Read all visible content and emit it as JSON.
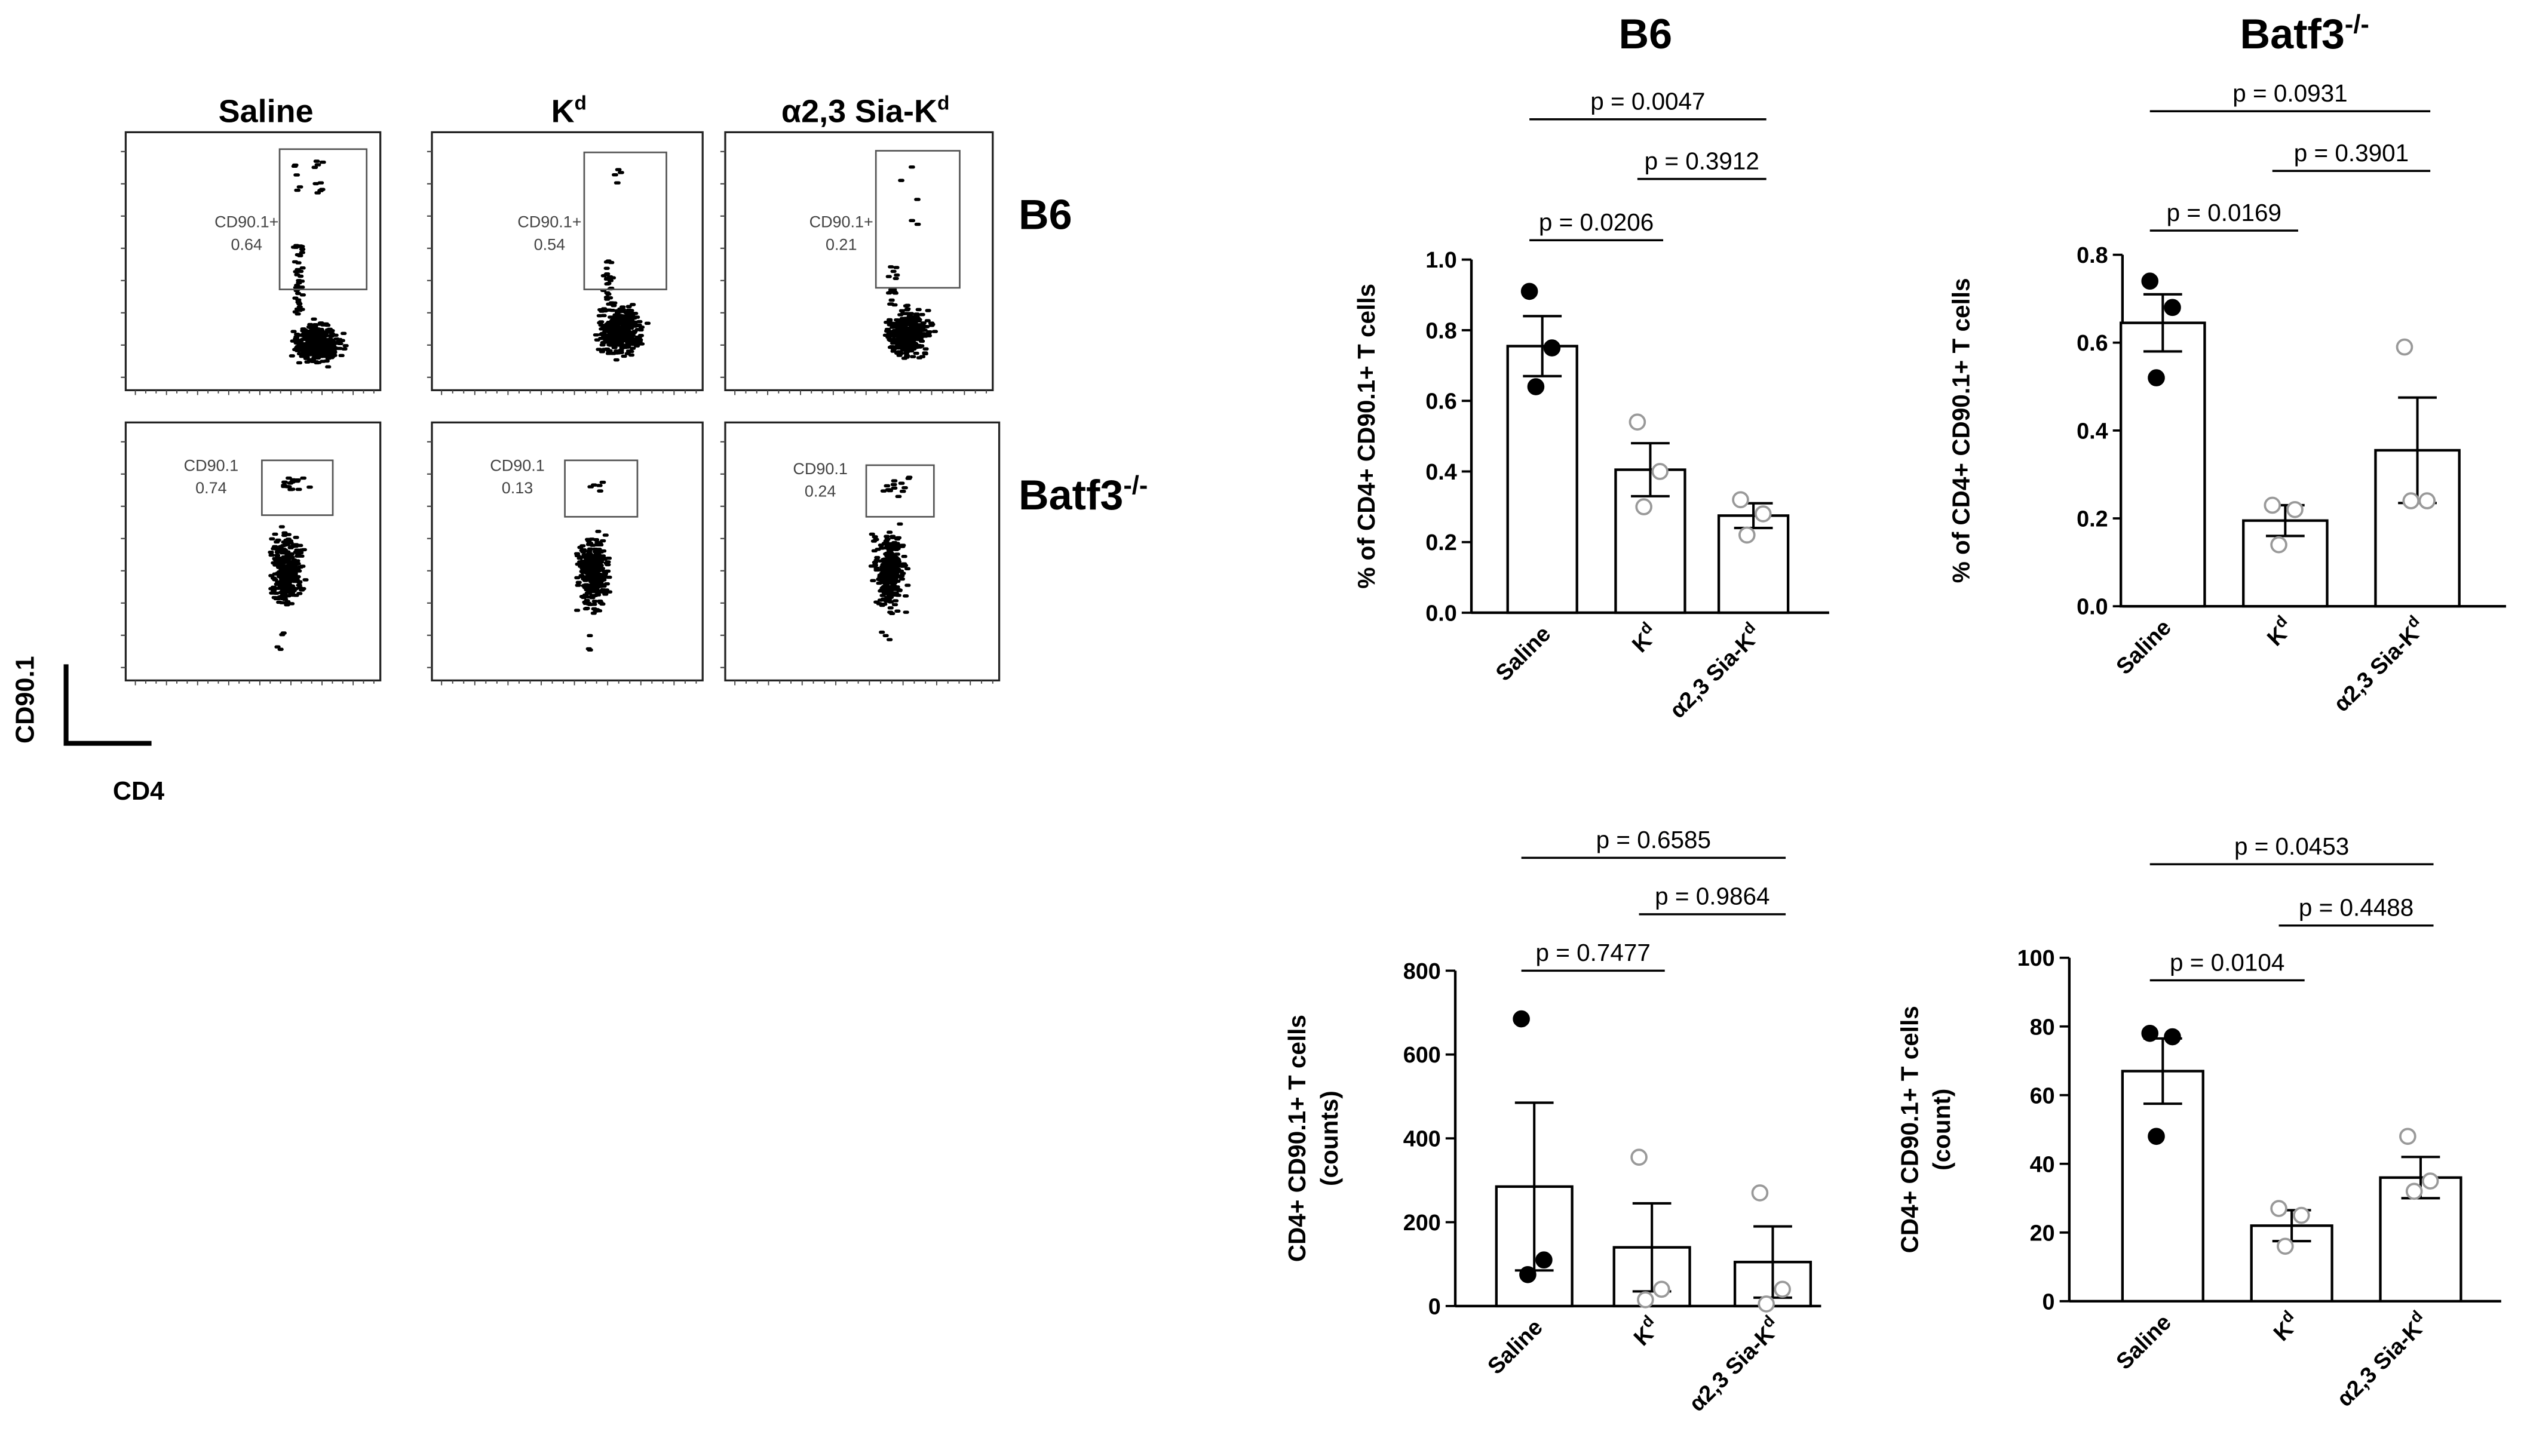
{
  "flow": {
    "columns": [
      {
        "name": "Saline",
        "sup": ""
      },
      {
        "name": "K",
        "sup": "d"
      },
      {
        "name": "α2,3 Sia-K",
        "sup": "d"
      }
    ],
    "rows": [
      {
        "name": "B6",
        "sup": "",
        "gate_name": "CD90.1+",
        "gates": [
          "0.64",
          "0.54",
          "0.21"
        ]
      },
      {
        "name": "Batf3",
        "sup": "-/-",
        "gate_name": "CD90.1",
        "gates": [
          "0.74",
          "0.13",
          "0.24"
        ]
      }
    ],
    "y_axis": "CD90.1",
    "x_axis": "CD4"
  },
  "groups": {
    "b6": {
      "title": "B6",
      "sup": ""
    },
    "batf3": {
      "title": "Batf3",
      "sup": "-/-"
    }
  },
  "chart_data": [
    {
      "type": "bar",
      "group": "B6",
      "ylabel_lines": [
        "% of CD4+ CD90.1+ T cells"
      ],
      "categories": [
        "Saline",
        "K^d",
        "α2,3 Sia-K^d"
      ],
      "values": [
        0.755,
        0.405,
        0.275
      ],
      "sem": [
        0.085,
        0.075,
        0.035
      ],
      "points": [
        [
          0.91,
          0.75,
          0.64
        ],
        [
          0.54,
          0.4,
          0.3
        ],
        [
          0.32,
          0.28,
          0.22
        ]
      ],
      "ylim": [
        0,
        1.0
      ],
      "yticks": [
        "0.0",
        "0.2",
        "0.4",
        "0.6",
        "0.8",
        "1.0"
      ],
      "comparisons": [
        {
          "label": "p = 0.0206",
          "from": 0,
          "to": 1
        },
        {
          "label": "p = 0.3912",
          "from": 1,
          "to": 2
        },
        {
          "label": "p = 0.0047",
          "from": 0,
          "to": 2
        }
      ]
    },
    {
      "type": "bar",
      "group": "Batf3-/-",
      "ylabel_lines": [
        "% of CD4+ CD90.1+ T cells"
      ],
      "categories": [
        "Saline",
        "K^d",
        "α2,3 Sia-K^d"
      ],
      "values": [
        0.645,
        0.195,
        0.355
      ],
      "sem": [
        0.065,
        0.035,
        0.12
      ],
      "points": [
        [
          0.74,
          0.68,
          0.52
        ],
        [
          0.23,
          0.22,
          0.14
        ],
        [
          0.59,
          0.24,
          0.24
        ]
      ],
      "ylim": [
        0,
        0.8
      ],
      "yticks": [
        "0.0",
        "0.2",
        "0.4",
        "0.6",
        "0.8"
      ],
      "comparisons": [
        {
          "label": "p = 0.0169",
          "from": 0,
          "to": 1
        },
        {
          "label": "p = 0.3901",
          "from": 1,
          "to": 2
        },
        {
          "label": "p = 0.0931",
          "from": 0,
          "to": 2
        }
      ]
    },
    {
      "type": "bar",
      "group": "B6",
      "ylabel_lines": [
        "CD4+ CD90.1+ T cells",
        "(counts)"
      ],
      "categories": [
        "Saline",
        "K^d",
        "α2,3 Sia-K^d"
      ],
      "values": [
        285,
        140,
        105
      ],
      "sem": [
        200,
        105,
        85
      ],
      "points": [
        [
          685,
          110,
          75
        ],
        [
          355,
          40,
          15
        ],
        [
          270,
          40,
          5
        ]
      ],
      "ylim": [
        0,
        800
      ],
      "yticks": [
        "0",
        "200",
        "400",
        "600",
        "800"
      ],
      "comparisons": [
        {
          "label": "p = 0.7477",
          "from": 0,
          "to": 1
        },
        {
          "label": "p = 0.9864",
          "from": 1,
          "to": 2
        },
        {
          "label": "p = 0.6585",
          "from": 0,
          "to": 2
        }
      ]
    },
    {
      "type": "bar",
      "group": "Batf3-/-",
      "ylabel_lines": [
        "CD4+ CD90.1+ T cells",
        "(count)"
      ],
      "categories": [
        "Saline",
        "K^d",
        "α2,3 Sia-K^d"
      ],
      "values": [
        67,
        22,
        36
      ],
      "sem": [
        9.5,
        4.5,
        6
      ],
      "points": [
        [
          78,
          77,
          48
        ],
        [
          27,
          25,
          16
        ],
        [
          48,
          35,
          32
        ]
      ],
      "ylim": [
        0,
        100
      ],
      "yticks": [
        "0",
        "20",
        "40",
        "60",
        "80",
        "100"
      ],
      "comparisons": [
        {
          "label": "p = 0.0104",
          "from": 0,
          "to": 1
        },
        {
          "label": "p = 0.4488",
          "from": 1,
          "to": 2
        },
        {
          "label": "p = 0.0453",
          "from": 0,
          "to": 2
        }
      ]
    }
  ]
}
